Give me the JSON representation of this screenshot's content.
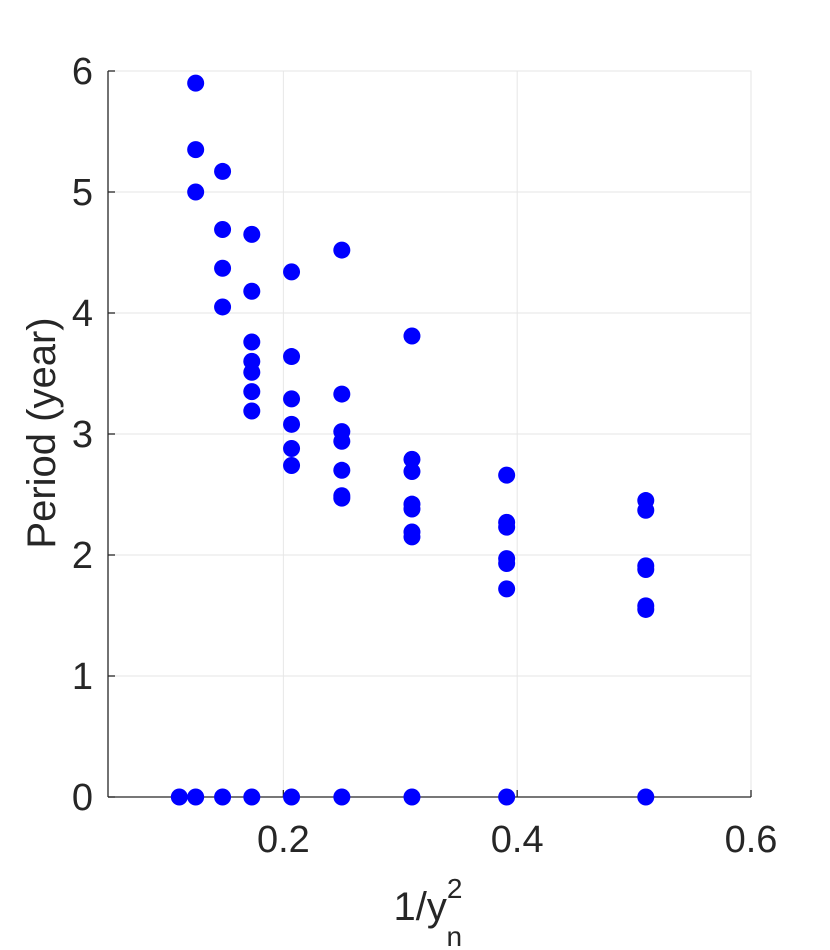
{
  "chart_data": {
    "type": "scatter",
    "xlabel": {
      "base": "1/y",
      "superscript": "2",
      "subscript": "n"
    },
    "ylabel": "Period (year)",
    "xlim": [
      0.05,
      0.6
    ],
    "ylim": [
      0,
      6
    ],
    "xticks": [
      0.2,
      0.4,
      0.6
    ],
    "xtick_labels": [
      "0.2",
      "0.4",
      "0.6"
    ],
    "yticks": [
      0,
      1,
      2,
      3,
      4,
      5,
      6
    ],
    "ytick_labels": [
      "0",
      "1",
      "2",
      "3",
      "4",
      "5",
      "6"
    ],
    "grid": true,
    "marker_color": "#0000ff",
    "points": [
      [
        0.111,
        0
      ],
      [
        0.125,
        5.9
      ],
      [
        0.125,
        5.35
      ],
      [
        0.125,
        5.0
      ],
      [
        0.125,
        0
      ],
      [
        0.148,
        5.17
      ],
      [
        0.148,
        4.69
      ],
      [
        0.148,
        4.37
      ],
      [
        0.148,
        4.05
      ],
      [
        0.148,
        0
      ],
      [
        0.173,
        4.65
      ],
      [
        0.173,
        4.18
      ],
      [
        0.173,
        3.76
      ],
      [
        0.173,
        3.6
      ],
      [
        0.173,
        3.51
      ],
      [
        0.173,
        3.35
      ],
      [
        0.173,
        3.19
      ],
      [
        0.173,
        0
      ],
      [
        0.207,
        4.34
      ],
      [
        0.207,
        3.64
      ],
      [
        0.207,
        3.29
      ],
      [
        0.207,
        3.08
      ],
      [
        0.207,
        2.88
      ],
      [
        0.207,
        2.74
      ],
      [
        0.207,
        0
      ],
      [
        0.25,
        4.52
      ],
      [
        0.25,
        3.33
      ],
      [
        0.25,
        3.02
      ],
      [
        0.25,
        2.94
      ],
      [
        0.25,
        2.7
      ],
      [
        0.25,
        2.49
      ],
      [
        0.25,
        2.47
      ],
      [
        0.25,
        0
      ],
      [
        0.31,
        3.81
      ],
      [
        0.31,
        2.79
      ],
      [
        0.31,
        2.69
      ],
      [
        0.31,
        2.42
      ],
      [
        0.31,
        2.38
      ],
      [
        0.31,
        2.19
      ],
      [
        0.31,
        2.15
      ],
      [
        0.31,
        0
      ],
      [
        0.391,
        2.66
      ],
      [
        0.391,
        2.27
      ],
      [
        0.391,
        2.23
      ],
      [
        0.391,
        1.97
      ],
      [
        0.391,
        1.93
      ],
      [
        0.391,
        1.72
      ],
      [
        0.391,
        0
      ],
      [
        0.51,
        2.45
      ],
      [
        0.51,
        2.37
      ],
      [
        0.51,
        1.91
      ],
      [
        0.51,
        1.88
      ],
      [
        0.51,
        1.58
      ],
      [
        0.51,
        1.55
      ],
      [
        0.51,
        0
      ]
    ]
  }
}
